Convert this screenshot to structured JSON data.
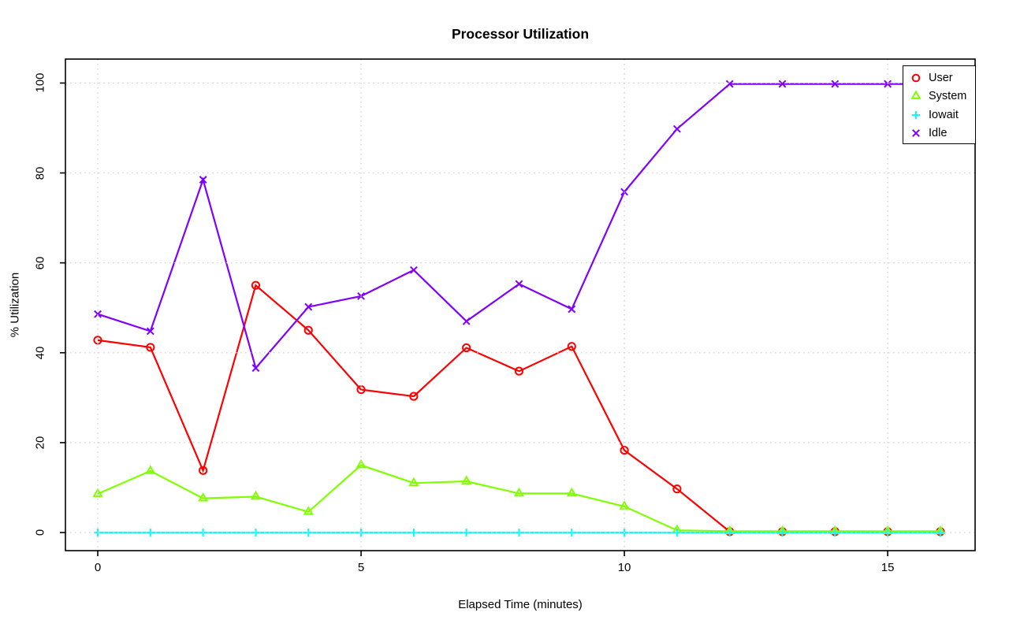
{
  "page": {
    "background": "#ffffff"
  },
  "chart_data": {
    "type": "line",
    "title": "Processor Utilization",
    "xlabel": "Elapsed Time (minutes)",
    "ylabel": "% Utilization",
    "x_ticks": [
      0,
      5,
      10,
      15
    ],
    "y_ticks": [
      0,
      20,
      40,
      60,
      80,
      100
    ],
    "xlim": [
      -0.614,
      16.66
    ],
    "ylim": [
      -4.03,
      105.33
    ],
    "grid": "dotted-lightgray",
    "grid_color": "#d2d2d2",
    "axis_color": "#000000",
    "legend_position": "topright",
    "x": [
      0,
      1,
      2,
      3,
      4,
      5,
      6,
      7,
      8,
      9,
      10,
      11,
      12,
      13,
      14,
      15,
      16
    ],
    "series": [
      {
        "name": "User",
        "color": "#FF0000",
        "marker": "circle",
        "values": [
          42.8,
          41.2,
          13.8,
          55.0,
          45.0,
          31.8,
          30.3,
          41.1,
          35.9,
          41.4,
          18.3,
          9.7,
          0.2,
          0.2,
          0.2,
          0.2,
          0.2
        ]
      },
      {
        "name": "System",
        "color": "#80FF00",
        "marker": "triangle",
        "values": [
          8.6,
          13.7,
          7.6,
          8.0,
          4.6,
          15.0,
          11.0,
          11.4,
          8.7,
          8.7,
          5.8,
          0.5,
          0.3,
          0.3,
          0.3,
          0.3,
          0.3
        ]
      },
      {
        "name": "Iowait",
        "color": "#00FFFF",
        "marker": "plus",
        "values": [
          0,
          0,
          0,
          0,
          0,
          0,
          0,
          0,
          0,
          0,
          0,
          0,
          0,
          0,
          0,
          0,
          0
        ]
      },
      {
        "name": "Idle",
        "color": "#8000FF",
        "marker": "x",
        "values": [
          48.6,
          44.8,
          78.5,
          36.6,
          50.2,
          52.6,
          58.4,
          47.0,
          55.3,
          49.7,
          75.8,
          89.8,
          99.8,
          99.8,
          99.8,
          99.8,
          99.8
        ]
      }
    ]
  }
}
